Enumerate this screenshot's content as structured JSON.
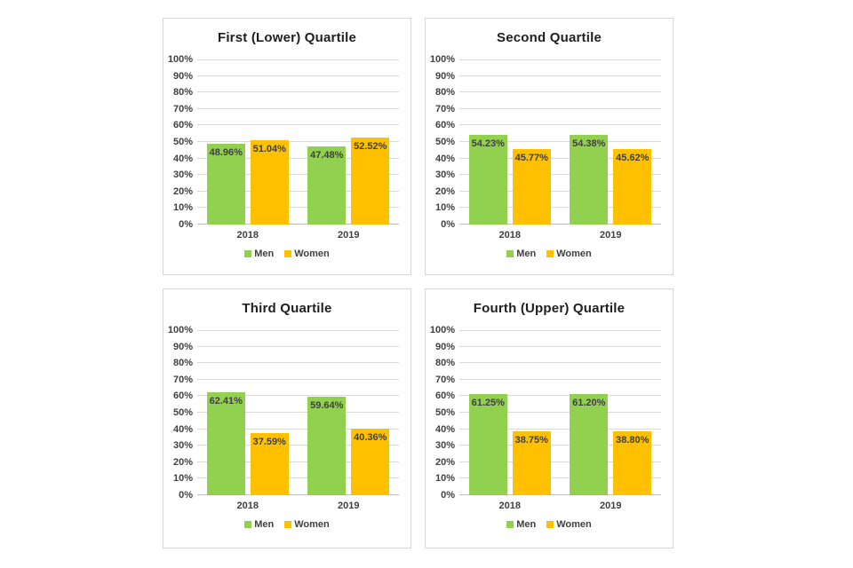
{
  "page": {
    "background": "#ffffff"
  },
  "colors": {
    "men": "#92D050",
    "women": "#FFC000",
    "label_text": "#404040",
    "axis_text": "#404040",
    "title_text": "#1f1f1f",
    "gridline": "#d9d9d9",
    "panel_border": "#d5d5d5"
  },
  "chart_data": [
    {
      "type": "bar",
      "title": "First (Lower) Quartile",
      "categories": [
        "2018",
        "2019"
      ],
      "series": [
        {
          "name": "Men",
          "color": "#92D050",
          "values": [
            48.96,
            47.48
          ],
          "labels": [
            "48.96%",
            "47.48%"
          ]
        },
        {
          "name": "Women",
          "color": "#FFC000",
          "values": [
            51.04,
            52.52
          ],
          "labels": [
            "51.04%",
            "52.52%"
          ]
        }
      ],
      "ylim": [
        0,
        100
      ],
      "ytick_step": 10,
      "ytick_labels": [
        "0%",
        "10%",
        "20%",
        "30%",
        "40%",
        "50%",
        "60%",
        "70%",
        "80%",
        "90%",
        "100%"
      ],
      "grid": true,
      "legend_position": "bottom"
    },
    {
      "type": "bar",
      "title": "Second Quartile",
      "categories": [
        "2018",
        "2019"
      ],
      "series": [
        {
          "name": "Men",
          "color": "#92D050",
          "values": [
            54.23,
            54.38
          ],
          "labels": [
            "54.23%",
            "54.38%"
          ]
        },
        {
          "name": "Women",
          "color": "#FFC000",
          "values": [
            45.77,
            45.62
          ],
          "labels": [
            "45.77%",
            "45.62%"
          ]
        }
      ],
      "ylim": [
        0,
        100
      ],
      "ytick_step": 10,
      "ytick_labels": [
        "0%",
        "10%",
        "20%",
        "30%",
        "40%",
        "50%",
        "60%",
        "70%",
        "80%",
        "90%",
        "100%"
      ],
      "grid": true,
      "legend_position": "bottom"
    },
    {
      "type": "bar",
      "title": "Third Quartile",
      "categories": [
        "2018",
        "2019"
      ],
      "series": [
        {
          "name": "Men",
          "color": "#92D050",
          "values": [
            62.41,
            59.64
          ],
          "labels": [
            "62.41%",
            "59.64%"
          ]
        },
        {
          "name": "Women",
          "color": "#FFC000",
          "values": [
            37.59,
            40.36
          ],
          "labels": [
            "37.59%",
            "40.36%"
          ]
        }
      ],
      "ylim": [
        0,
        100
      ],
      "ytick_step": 10,
      "ytick_labels": [
        "0%",
        "10%",
        "20%",
        "30%",
        "40%",
        "50%",
        "60%",
        "70%",
        "80%",
        "90%",
        "100%"
      ],
      "grid": true,
      "legend_position": "bottom"
    },
    {
      "type": "bar",
      "title": "Fourth (Upper) Quartile",
      "categories": [
        "2018",
        "2019"
      ],
      "series": [
        {
          "name": "Men",
          "color": "#92D050",
          "values": [
            61.25,
            61.2
          ],
          "labels": [
            "61.25%",
            "61.20%"
          ]
        },
        {
          "name": "Women",
          "color": "#FFC000",
          "values": [
            38.75,
            38.8
          ],
          "labels": [
            "38.75%",
            "38.80%"
          ]
        }
      ],
      "ylim": [
        0,
        100
      ],
      "ytick_step": 10,
      "ytick_labels": [
        "0%",
        "10%",
        "20%",
        "30%",
        "40%",
        "50%",
        "60%",
        "70%",
        "80%",
        "90%",
        "100%"
      ],
      "grid": true,
      "legend_position": "bottom"
    }
  ]
}
